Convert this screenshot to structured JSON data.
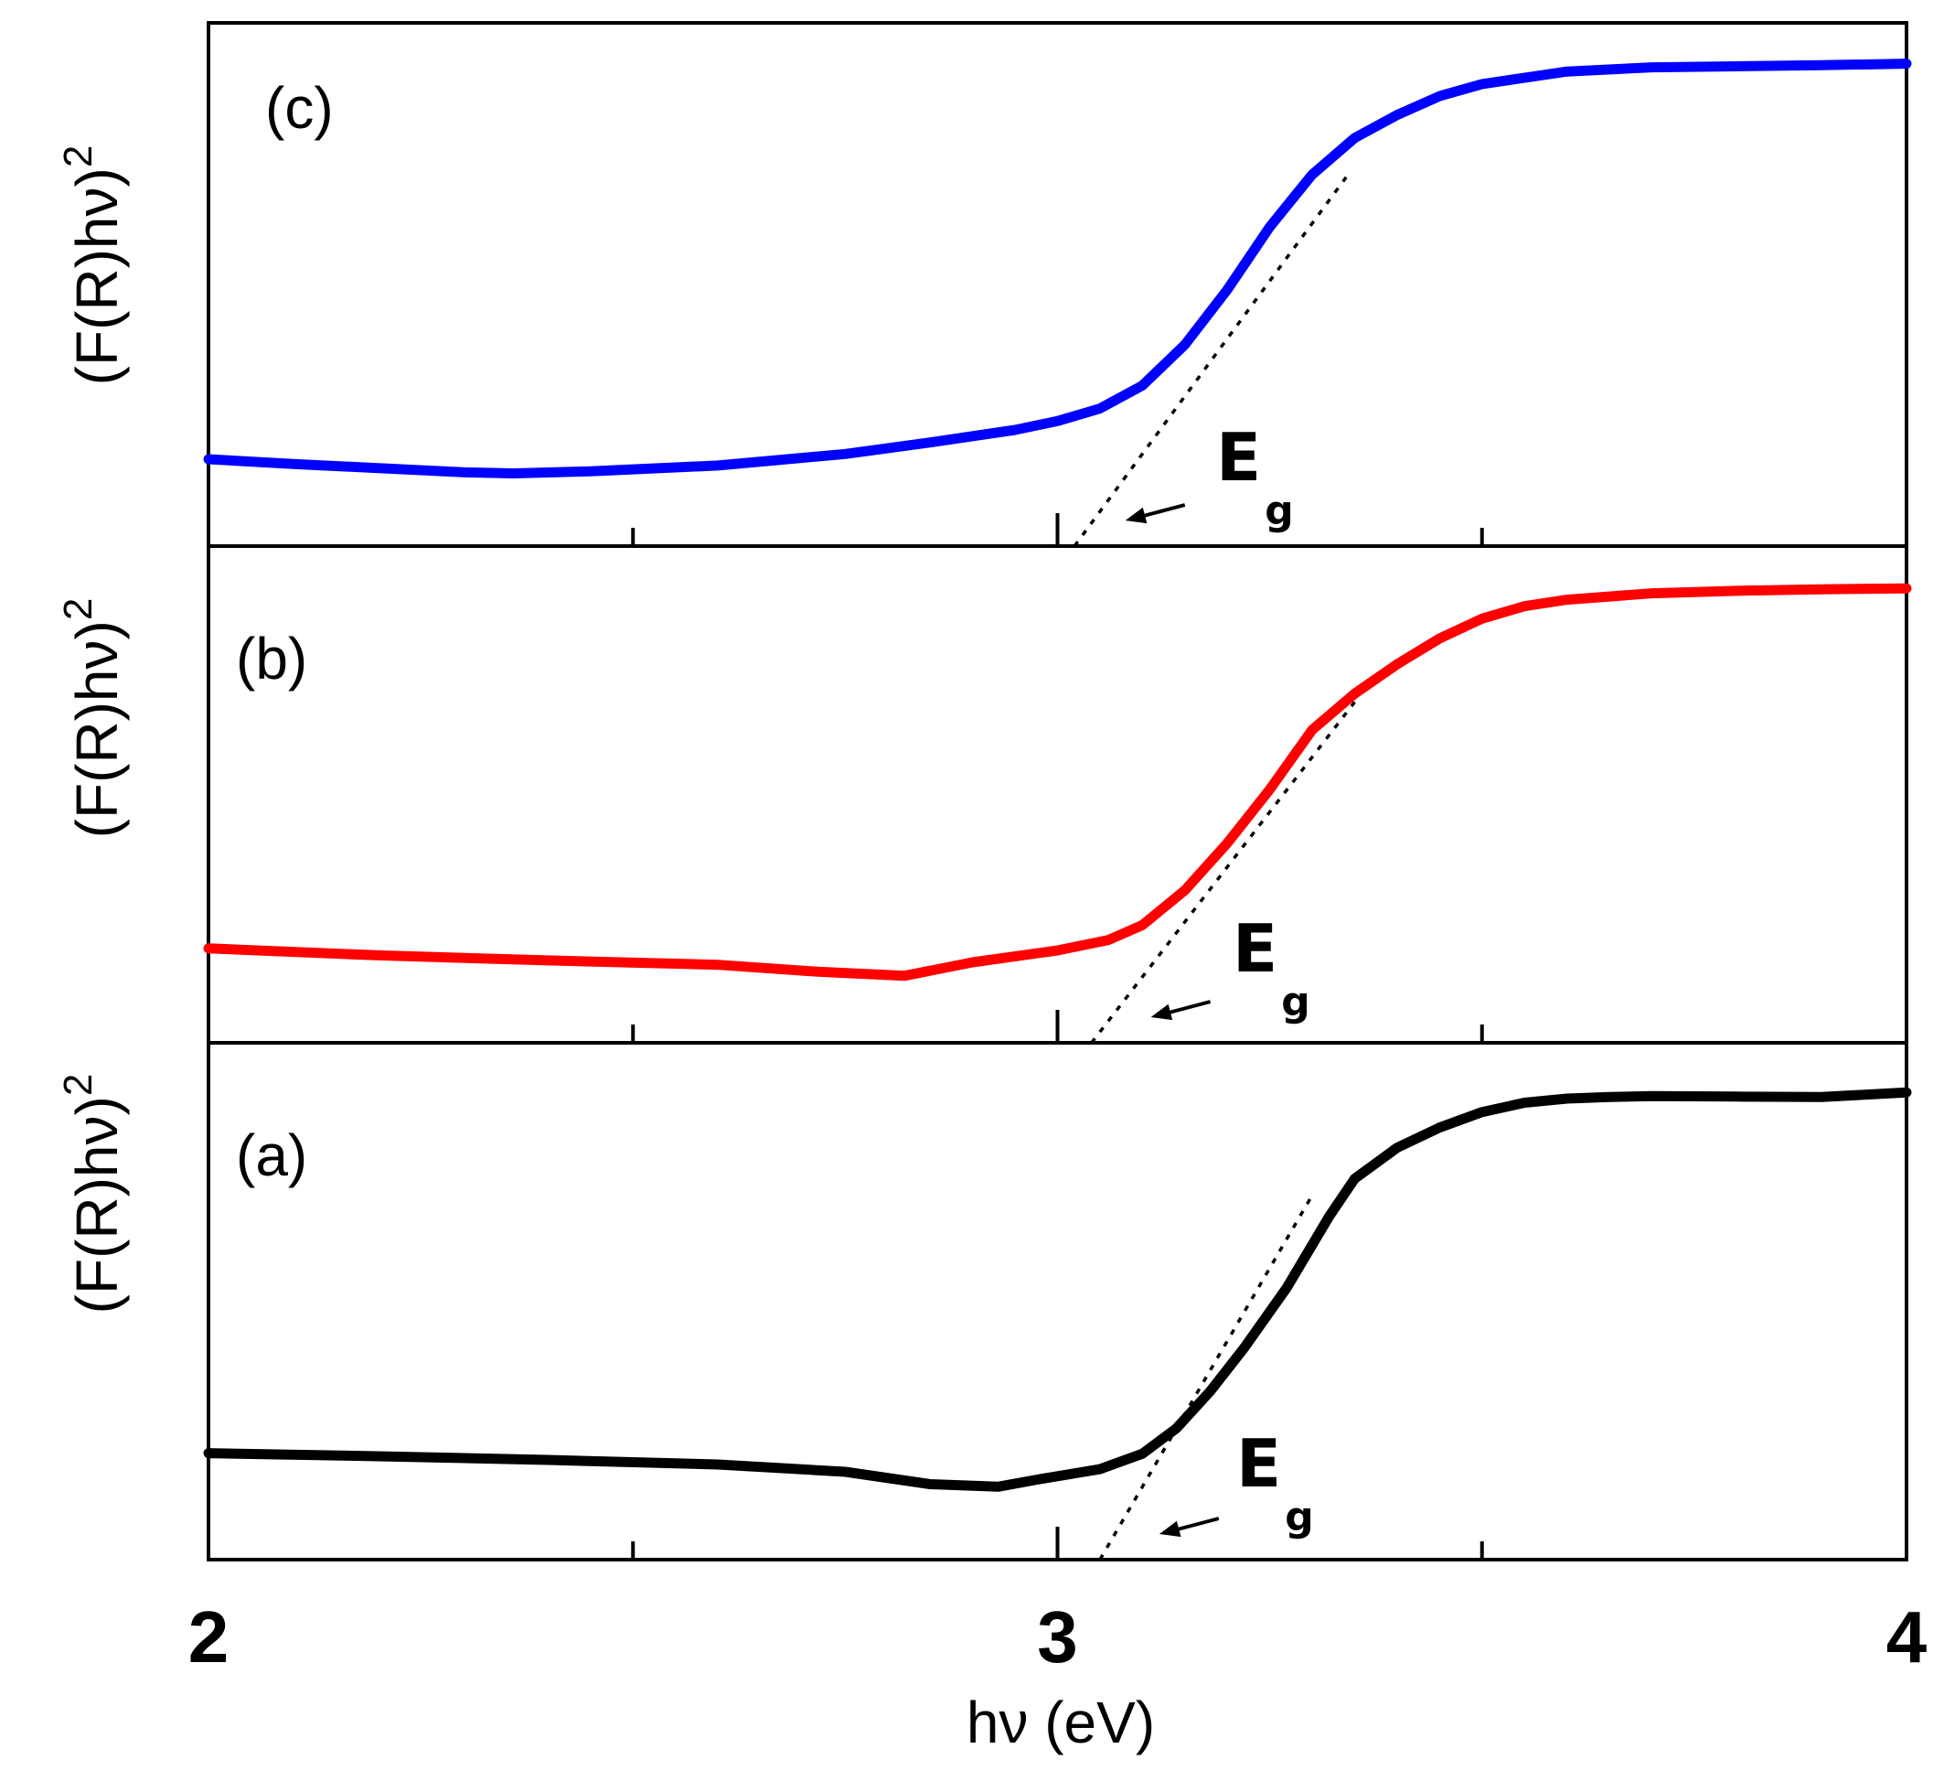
{
  "chart_data": [
    {
      "type": "line",
      "panel": "top",
      "panel_label": "(c)",
      "ylabel": "(F(R)hν)",
      "ylabel_sup": "2",
      "annotation": "E",
      "annotation_sub": "g",
      "color": "#0000ff",
      "xlim": [
        2,
        4
      ],
      "ylim": [
        0,
        1
      ],
      "x": [
        2.0,
        2.1,
        2.2,
        2.3,
        2.36,
        2.45,
        2.6,
        2.75,
        2.85,
        2.95,
        3.0,
        3.05,
        3.1,
        3.15,
        3.2,
        3.25,
        3.3,
        3.35,
        3.4,
        3.45,
        3.5,
        3.6,
        3.7,
        3.8,
        3.9,
        4.0
      ],
      "y": [
        0.166,
        0.157,
        0.149,
        0.141,
        0.139,
        0.143,
        0.154,
        0.176,
        0.198,
        0.222,
        0.239,
        0.263,
        0.307,
        0.385,
        0.49,
        0.61,
        0.71,
        0.78,
        0.824,
        0.86,
        0.883,
        0.907,
        0.915,
        0.917,
        0.919,
        0.922
      ],
      "fit_line": {
        "x": [
          3.02,
          3.34
        ],
        "y": [
          0.0,
          0.705
        ]
      },
      "eg_arrow_x": [
        3.15,
        3.08
      ]
    },
    {
      "type": "line",
      "panel": "middle",
      "panel_label": "(b)",
      "ylabel": "(F(R)hν)",
      "ylabel_sup": "2",
      "annotation": "E",
      "annotation_sub": "g",
      "color": "#ff0000",
      "xlim": [
        2,
        4
      ],
      "ylim": [
        0,
        1
      ],
      "x": [
        2.0,
        2.2,
        2.4,
        2.6,
        2.72,
        2.82,
        2.9,
        3.0,
        3.06,
        3.1,
        3.15,
        3.2,
        3.25,
        3.3,
        3.35,
        3.4,
        3.45,
        3.5,
        3.55,
        3.6,
        3.7,
        3.8,
        3.9,
        4.0
      ],
      "y": [
        0.19,
        0.176,
        0.166,
        0.157,
        0.143,
        0.135,
        0.162,
        0.186,
        0.207,
        0.237,
        0.307,
        0.402,
        0.51,
        0.63,
        0.703,
        0.762,
        0.814,
        0.854,
        0.879,
        0.892,
        0.905,
        0.91,
        0.913,
        0.915
      ],
      "fit_line": {
        "x": [
          3.04,
          3.35
        ],
        "y": [
          0.0,
          0.686
        ]
      },
      "eg_arrow_x": [
        3.18,
        3.11
      ]
    },
    {
      "type": "line",
      "panel": "bottom",
      "panel_label": "(a)",
      "ylabel": "(F(R)hν)",
      "ylabel_sup": "2",
      "annotation": "E",
      "annotation_sub": "g",
      "color": "#000000",
      "xlim": [
        2,
        4
      ],
      "ylim": [
        0,
        1
      ],
      "x": [
        2.0,
        2.2,
        2.4,
        2.6,
        2.75,
        2.85,
        2.93,
        2.98,
        3.05,
        3.1,
        3.14,
        3.18,
        3.22,
        3.27,
        3.32,
        3.35,
        3.4,
        3.45,
        3.5,
        3.55,
        3.6,
        3.65,
        3.7,
        3.8,
        3.9,
        4.0
      ],
      "y": [
        0.206,
        0.2,
        0.193,
        0.184,
        0.17,
        0.146,
        0.141,
        0.156,
        0.175,
        0.205,
        0.254,
        0.326,
        0.41,
        0.526,
        0.664,
        0.737,
        0.797,
        0.836,
        0.866,
        0.884,
        0.892,
        0.895,
        0.897,
        0.896,
        0.895,
        0.904
      ],
      "fit_line": {
        "x": [
          3.05,
          3.3
        ],
        "y": [
          0.0,
          0.705
        ]
      },
      "eg_arrow_x": [
        3.19,
        3.12
      ]
    }
  ],
  "x_axis": {
    "ticks_major": [
      2,
      3,
      4
    ],
    "tick_labels": [
      "2",
      "3",
      "4"
    ],
    "ticks_minor": [
      2.5,
      3.5
    ],
    "label": "hν (eV)"
  }
}
